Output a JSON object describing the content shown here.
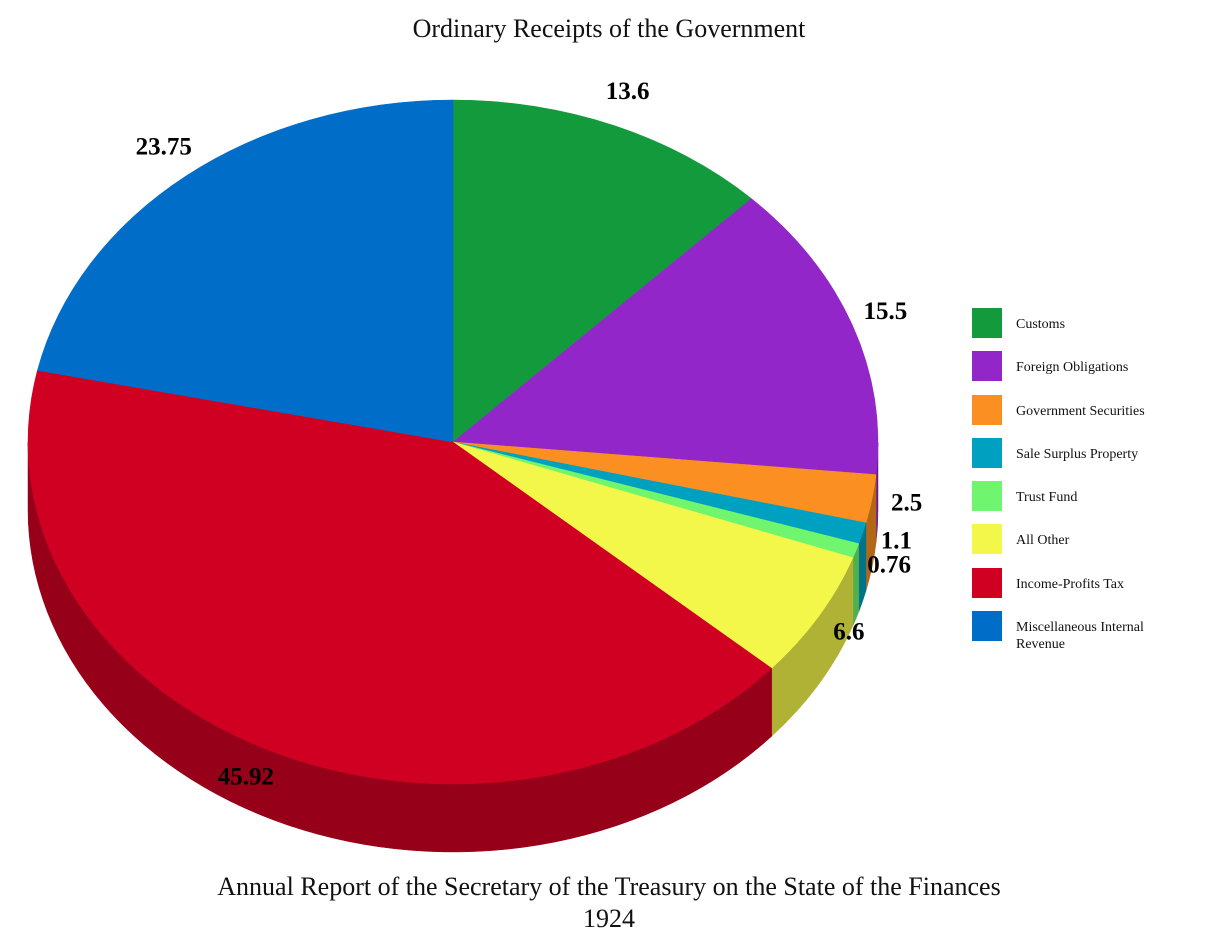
{
  "chart_data": {
    "type": "pie",
    "title": "Ordinary Receipts of the Government",
    "caption": [
      "Annual Report of the Secretary of the Treasury on the State of the Finances",
      "1924"
    ],
    "categories": [
      "Customs",
      "Foreign Obligations",
      "Government Securities",
      "Sale Surplus Property",
      "Trust Fund",
      "All Other",
      "Income-Profits Tax",
      "Miscellaneous Internal Revenue"
    ],
    "values": [
      13.6,
      15.5,
      2.5,
      1.1,
      0.76,
      6.6,
      45.92,
      23.75
    ],
    "colors": [
      "#139a3d",
      "#9326c9",
      "#fb8f22",
      "#00a0c0",
      "#6ff56e",
      "#f3f74a",
      "#d00022",
      "#006ec9"
    ],
    "legend": "right"
  }
}
